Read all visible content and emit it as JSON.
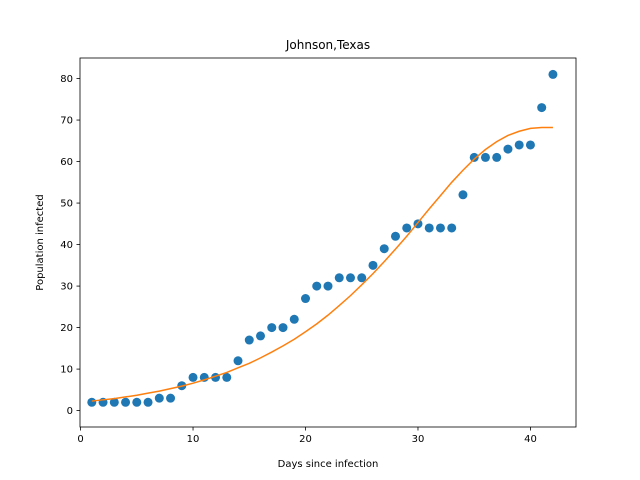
{
  "chart_data": {
    "type": "scatter",
    "title": "Johnson,Texas",
    "xlabel": "Days since infection",
    "ylabel": "Population infected",
    "xlim": [
      -0.05,
      44.05
    ],
    "ylim": [
      -3.95,
      84.95
    ],
    "xticks": [
      0,
      10,
      20,
      30,
      40
    ],
    "yticks": [
      0,
      10,
      20,
      30,
      40,
      50,
      60,
      70,
      80
    ],
    "grid": false,
    "series": [
      {
        "kind": "points",
        "color": "#1f77b4",
        "x": [
          1,
          2,
          3,
          4,
          5,
          6,
          7,
          8,
          9,
          10,
          11,
          12,
          13,
          14,
          15,
          16,
          17,
          18,
          19,
          20,
          21,
          22,
          23,
          24,
          25,
          26,
          27,
          28,
          29,
          30,
          31,
          32,
          33,
          34,
          35,
          36,
          37,
          38,
          39,
          40,
          41,
          42
        ],
        "y": [
          2,
          2,
          2,
          2,
          2,
          2,
          3,
          3,
          6,
          8,
          8,
          8,
          8,
          12,
          17,
          18,
          20,
          20,
          22,
          27,
          30,
          30,
          32,
          32,
          32,
          35,
          39,
          42,
          44,
          45,
          44,
          44,
          44,
          52,
          61,
          61,
          61,
          63,
          64,
          64,
          73,
          81
        ]
      },
      {
        "kind": "fit-line",
        "color": "#ff7f0e",
        "x": [
          1,
          2,
          3,
          4,
          5,
          6,
          7,
          8,
          9,
          10,
          11,
          12,
          13,
          14,
          15,
          16,
          17,
          18,
          19,
          20,
          21,
          22,
          23,
          24,
          25,
          26,
          27,
          28,
          29,
          30,
          31,
          32,
          33,
          34,
          35,
          36,
          37,
          38,
          39,
          40,
          41,
          42
        ],
        "y": [
          2.3,
          2.6,
          2.9,
          3.3,
          3.7,
          4.2,
          4.7,
          5.3,
          5.9,
          6.6,
          7.4,
          8.3,
          9.2,
          10.3,
          11.4,
          12.7,
          14.1,
          15.6,
          17.2,
          19.0,
          20.9,
          23.0,
          25.3,
          27.7,
          30.3,
          33.0,
          35.9,
          38.9,
          42.0,
          45.3,
          48.6,
          51.8,
          55.0,
          57.9,
          60.6,
          62.9,
          64.8,
          66.3,
          67.3,
          68.0,
          68.2,
          68.2
        ]
      }
    ]
  }
}
